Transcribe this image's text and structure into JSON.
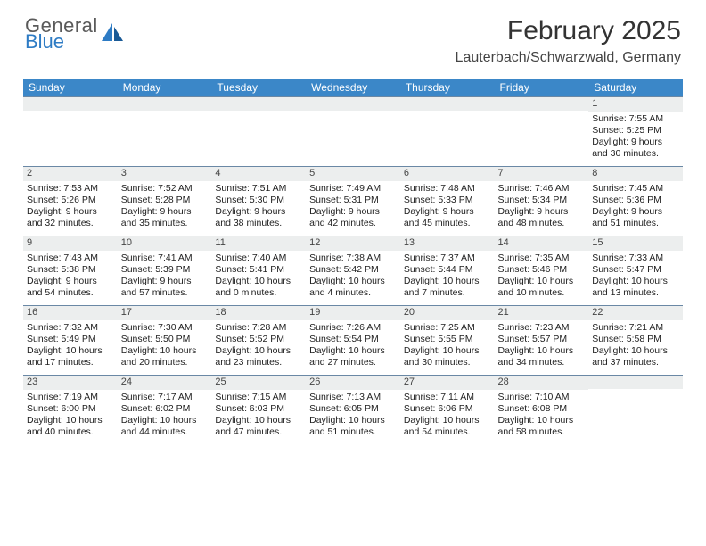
{
  "logo": {
    "top": "General",
    "bottom": "Blue"
  },
  "title": "February 2025",
  "location": "Lauterbach/Schwarzwald, Germany",
  "weekday_header_bg": "#3b87c8",
  "weekdays": [
    "Sunday",
    "Monday",
    "Tuesday",
    "Wednesday",
    "Thursday",
    "Friday",
    "Saturday"
  ],
  "weeks": [
    [
      {
        "n": "",
        "lines": []
      },
      {
        "n": "",
        "lines": []
      },
      {
        "n": "",
        "lines": []
      },
      {
        "n": "",
        "lines": []
      },
      {
        "n": "",
        "lines": []
      },
      {
        "n": "",
        "lines": []
      },
      {
        "n": "1",
        "lines": [
          "Sunrise: 7:55 AM",
          "Sunset: 5:25 PM",
          "Daylight: 9 hours and 30 minutes."
        ]
      }
    ],
    [
      {
        "n": "2",
        "lines": [
          "Sunrise: 7:53 AM",
          "Sunset: 5:26 PM",
          "Daylight: 9 hours and 32 minutes."
        ]
      },
      {
        "n": "3",
        "lines": [
          "Sunrise: 7:52 AM",
          "Sunset: 5:28 PM",
          "Daylight: 9 hours and 35 minutes."
        ]
      },
      {
        "n": "4",
        "lines": [
          "Sunrise: 7:51 AM",
          "Sunset: 5:30 PM",
          "Daylight: 9 hours and 38 minutes."
        ]
      },
      {
        "n": "5",
        "lines": [
          "Sunrise: 7:49 AM",
          "Sunset: 5:31 PM",
          "Daylight: 9 hours and 42 minutes."
        ]
      },
      {
        "n": "6",
        "lines": [
          "Sunrise: 7:48 AM",
          "Sunset: 5:33 PM",
          "Daylight: 9 hours and 45 minutes."
        ]
      },
      {
        "n": "7",
        "lines": [
          "Sunrise: 7:46 AM",
          "Sunset: 5:34 PM",
          "Daylight: 9 hours and 48 minutes."
        ]
      },
      {
        "n": "8",
        "lines": [
          "Sunrise: 7:45 AM",
          "Sunset: 5:36 PM",
          "Daylight: 9 hours and 51 minutes."
        ]
      }
    ],
    [
      {
        "n": "9",
        "lines": [
          "Sunrise: 7:43 AM",
          "Sunset: 5:38 PM",
          "Daylight: 9 hours and 54 minutes."
        ]
      },
      {
        "n": "10",
        "lines": [
          "Sunrise: 7:41 AM",
          "Sunset: 5:39 PM",
          "Daylight: 9 hours and 57 minutes."
        ]
      },
      {
        "n": "11",
        "lines": [
          "Sunrise: 7:40 AM",
          "Sunset: 5:41 PM",
          "Daylight: 10 hours and 0 minutes."
        ]
      },
      {
        "n": "12",
        "lines": [
          "Sunrise: 7:38 AM",
          "Sunset: 5:42 PM",
          "Daylight: 10 hours and 4 minutes."
        ]
      },
      {
        "n": "13",
        "lines": [
          "Sunrise: 7:37 AM",
          "Sunset: 5:44 PM",
          "Daylight: 10 hours and 7 minutes."
        ]
      },
      {
        "n": "14",
        "lines": [
          "Sunrise: 7:35 AM",
          "Sunset: 5:46 PM",
          "Daylight: 10 hours and 10 minutes."
        ]
      },
      {
        "n": "15",
        "lines": [
          "Sunrise: 7:33 AM",
          "Sunset: 5:47 PM",
          "Daylight: 10 hours and 13 minutes."
        ]
      }
    ],
    [
      {
        "n": "16",
        "lines": [
          "Sunrise: 7:32 AM",
          "Sunset: 5:49 PM",
          "Daylight: 10 hours and 17 minutes."
        ]
      },
      {
        "n": "17",
        "lines": [
          "Sunrise: 7:30 AM",
          "Sunset: 5:50 PM",
          "Daylight: 10 hours and 20 minutes."
        ]
      },
      {
        "n": "18",
        "lines": [
          "Sunrise: 7:28 AM",
          "Sunset: 5:52 PM",
          "Daylight: 10 hours and 23 minutes."
        ]
      },
      {
        "n": "19",
        "lines": [
          "Sunrise: 7:26 AM",
          "Sunset: 5:54 PM",
          "Daylight: 10 hours and 27 minutes."
        ]
      },
      {
        "n": "20",
        "lines": [
          "Sunrise: 7:25 AM",
          "Sunset: 5:55 PM",
          "Daylight: 10 hours and 30 minutes."
        ]
      },
      {
        "n": "21",
        "lines": [
          "Sunrise: 7:23 AM",
          "Sunset: 5:57 PM",
          "Daylight: 10 hours and 34 minutes."
        ]
      },
      {
        "n": "22",
        "lines": [
          "Sunrise: 7:21 AM",
          "Sunset: 5:58 PM",
          "Daylight: 10 hours and 37 minutes."
        ]
      }
    ],
    [
      {
        "n": "23",
        "lines": [
          "Sunrise: 7:19 AM",
          "Sunset: 6:00 PM",
          "Daylight: 10 hours and 40 minutes."
        ]
      },
      {
        "n": "24",
        "lines": [
          "Sunrise: 7:17 AM",
          "Sunset: 6:02 PM",
          "Daylight: 10 hours and 44 minutes."
        ]
      },
      {
        "n": "25",
        "lines": [
          "Sunrise: 7:15 AM",
          "Sunset: 6:03 PM",
          "Daylight: 10 hours and 47 minutes."
        ]
      },
      {
        "n": "26",
        "lines": [
          "Sunrise: 7:13 AM",
          "Sunset: 6:05 PM",
          "Daylight: 10 hours and 51 minutes."
        ]
      },
      {
        "n": "27",
        "lines": [
          "Sunrise: 7:11 AM",
          "Sunset: 6:06 PM",
          "Daylight: 10 hours and 54 minutes."
        ]
      },
      {
        "n": "28",
        "lines": [
          "Sunrise: 7:10 AM",
          "Sunset: 6:08 PM",
          "Daylight: 10 hours and 58 minutes."
        ]
      },
      {
        "n": "",
        "lines": []
      }
    ]
  ]
}
